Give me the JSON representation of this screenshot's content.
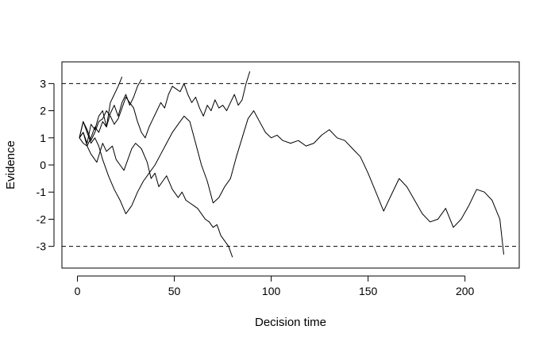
{
  "chart_data": {
    "type": "line",
    "title": "",
    "xlabel": "Decision time",
    "ylabel": "Evidence",
    "xlim": [
      -8,
      228
    ],
    "ylim": [
      -3.8,
      3.8
    ],
    "xticks": [
      0,
      50,
      100,
      150,
      200
    ],
    "yticks": [
      -3,
      -2,
      -1,
      0,
      1,
      2,
      3
    ],
    "xtick_labels": [
      "0",
      "50",
      "100",
      "150",
      "200"
    ],
    "ytick_labels": [
      "-3",
      "-2",
      "-1",
      "0",
      "1",
      "2",
      "3"
    ],
    "grid": false,
    "legend": "none",
    "line_color": "#000000",
    "thresholds": [
      {
        "y": 3,
        "style": "dashed"
      },
      {
        "y": -3,
        "style": "dashed"
      }
    ],
    "series": [
      {
        "x": [
          1,
          3,
          5,
          7,
          9,
          11,
          13,
          15,
          17,
          19,
          21,
          23
        ],
        "y": [
          1.0,
          1.2,
          0.8,
          1.5,
          1.3,
          1.8,
          2.0,
          1.4,
          2.3,
          2.6,
          2.9,
          3.25
        ]
      },
      {
        "x": [
          1,
          3,
          5,
          7,
          9,
          11,
          13,
          15,
          17,
          19,
          21,
          23,
          25,
          27,
          29,
          31,
          33
        ],
        "y": [
          1.0,
          1.2,
          0.7,
          1.0,
          1.4,
          1.2,
          1.6,
          1.4,
          1.9,
          2.2,
          1.8,
          2.3,
          2.6,
          2.2,
          2.5,
          2.9,
          3.15
        ]
      },
      {
        "x": [
          1,
          3,
          5,
          7,
          10,
          13,
          15,
          18,
          20,
          22,
          24,
          26,
          28,
          30,
          33,
          36,
          38,
          40,
          42,
          44,
          46,
          49,
          52,
          54,
          56,
          58,
          60,
          62,
          64,
          66,
          68,
          70,
          72,
          74,
          76,
          78,
          80
        ],
        "y": [
          1.0,
          0.8,
          0.7,
          0.4,
          0.1,
          0.8,
          0.5,
          0.7,
          0.2,
          0.0,
          -0.2,
          0.2,
          0.6,
          0.8,
          0.6,
          0.1,
          -0.5,
          -0.3,
          -0.8,
          -0.6,
          -0.4,
          -0.9,
          -1.2,
          -1.0,
          -1.3,
          -1.4,
          -1.5,
          -1.6,
          -1.8,
          -2.0,
          -2.1,
          -2.3,
          -2.2,
          -2.6,
          -2.8,
          -3.0,
          -3.4
        ]
      },
      {
        "x": [
          1,
          3,
          5,
          7,
          9,
          11,
          13,
          15,
          17,
          19,
          21,
          23,
          25,
          27,
          29,
          31,
          33,
          35,
          37,
          39,
          41,
          43,
          45,
          47,
          49,
          51,
          53,
          55,
          57,
          59,
          61,
          63,
          65,
          67,
          69,
          71,
          73,
          75,
          77,
          79,
          81,
          83,
          85,
          87,
          89
        ],
        "y": [
          1.0,
          1.6,
          1.3,
          0.9,
          1.2,
          1.6,
          1.7,
          2.0,
          1.8,
          1.5,
          1.7,
          2.1,
          2.5,
          2.3,
          2.1,
          1.6,
          1.2,
          1.0,
          1.4,
          1.7,
          2.0,
          2.3,
          2.1,
          2.6,
          2.9,
          2.8,
          2.7,
          3.0,
          2.6,
          2.3,
          2.5,
          2.1,
          1.8,
          2.2,
          2.0,
          2.4,
          2.1,
          2.2,
          2.0,
          2.3,
          2.6,
          2.2,
          2.4,
          3.0,
          3.45
        ]
      },
      {
        "x": [
          1,
          3,
          5,
          7,
          9,
          11,
          13,
          16,
          19,
          22,
          25,
          28,
          31,
          34,
          37,
          40,
          43,
          46,
          49,
          52,
          55,
          58,
          61,
          64,
          67,
          70,
          73,
          76,
          79,
          82,
          85,
          88,
          91,
          94,
          97,
          100,
          103,
          106,
          110,
          114,
          118,
          122,
          126,
          130,
          134,
          138,
          142,
          146,
          150,
          154,
          158,
          162,
          166,
          170,
          174,
          178,
          182,
          186,
          190,
          194,
          198,
          202,
          206,
          210,
          214,
          218,
          220
        ],
        "y": [
          1.0,
          1.6,
          1.2,
          0.8,
          1.0,
          0.7,
          0.2,
          -0.4,
          -0.9,
          -1.3,
          -1.8,
          -1.5,
          -1.0,
          -0.6,
          -0.3,
          0.0,
          0.4,
          0.8,
          1.2,
          1.5,
          1.8,
          1.6,
          0.8,
          0.0,
          -0.6,
          -1.4,
          -1.2,
          -0.8,
          -0.5,
          0.3,
          1.0,
          1.7,
          2.0,
          1.6,
          1.2,
          1.0,
          1.1,
          0.9,
          0.8,
          0.9,
          0.7,
          0.8,
          1.1,
          1.3,
          1.0,
          0.9,
          0.6,
          0.3,
          -0.3,
          -1.0,
          -1.7,
          -1.1,
          -0.5,
          -0.8,
          -1.3,
          -1.8,
          -2.1,
          -2.0,
          -1.6,
          -2.3,
          -2.0,
          -1.5,
          -0.9,
          -1.0,
          -1.3,
          -2.0,
          -3.3
        ]
      }
    ]
  }
}
